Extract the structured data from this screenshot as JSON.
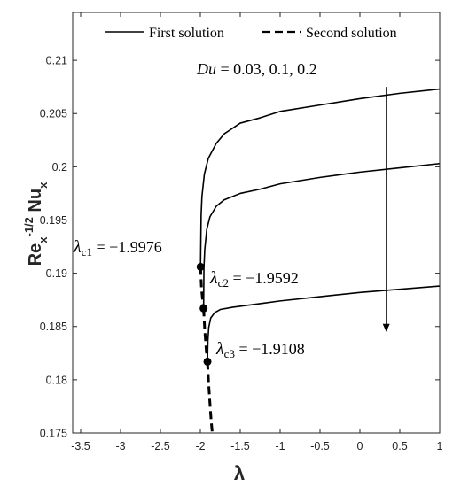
{
  "chart_data": {
    "type": "line",
    "xlabel_main": "λ",
    "ylabel_main": "Re",
    "ylabel_sup": "-1/2",
    "ylabel_main2": " Nu",
    "ylabel_sub1": "x",
    "ylabel_sub2": "x",
    "xlim": [
      -3.6,
      1
    ],
    "ylim": [
      0.175,
      0.2145
    ],
    "xticks": [
      -3.5,
      -3,
      -2.5,
      -2,
      -1.5,
      -1,
      -0.5,
      0,
      0.5,
      1
    ],
    "xtick_labels": [
      "-3.5",
      "-3",
      "-2.5",
      "-2",
      "-1.5",
      "-1",
      "-0.5",
      "0",
      "0.5",
      "1"
    ],
    "yticks": [
      0.175,
      0.18,
      0.185,
      0.19,
      0.195,
      0.2,
      0.205,
      0.21
    ],
    "ytick_labels": [
      "0.175",
      "0.18",
      "0.185",
      "0.19",
      "0.195",
      "0.2",
      "0.205",
      "0.21"
    ],
    "grid": false,
    "legend": {
      "placement": "top",
      "entries": [
        {
          "label": "First solution",
          "style": "solid"
        },
        {
          "label": "Second solution",
          "style": "dashed"
        }
      ]
    },
    "annotation": {
      "label": "Du",
      "text": " = 0.03, 0.1, 0.2"
    },
    "arrow": {
      "x": 0.33,
      "y_from": 0.2075,
      "y_to": 0.1845
    },
    "critical_points": [
      {
        "name": "λ",
        "sub": "c1",
        "text": " = −1.9976",
        "x": -1.9976,
        "y": 0.1906
      },
      {
        "name": "λ",
        "sub": "c2",
        "text": " = −1.9592",
        "x": -1.9592,
        "y": 0.1867
      },
      {
        "name": "λ",
        "sub": "c3",
        "text": " = −1.9108",
        "x": -1.9108,
        "y": 0.1817
      }
    ],
    "series": [
      {
        "style": "solid",
        "x": [
          -1.9976,
          -1.99,
          -1.98,
          -1.95,
          -1.9,
          -1.8,
          -1.7,
          -1.5,
          -1.25,
          -1,
          -0.5,
          0,
          0.5,
          1
        ],
        "y": [
          0.1906,
          0.1955,
          0.1972,
          0.1993,
          0.2008,
          0.2022,
          0.2031,
          0.2041,
          0.2046,
          0.2052,
          0.2058,
          0.2064,
          0.2069,
          0.2073
        ]
      },
      {
        "style": "solid",
        "x": [
          -1.9592,
          -1.955,
          -1.945,
          -1.92,
          -1.88,
          -1.8,
          -1.7,
          -1.5,
          -1.25,
          -1,
          -0.5,
          0,
          0.5,
          1
        ],
        "y": [
          0.1867,
          0.1905,
          0.1922,
          0.1941,
          0.1953,
          0.1963,
          0.1969,
          0.1975,
          0.1979,
          0.1984,
          0.199,
          0.1995,
          0.1999,
          0.2003
        ]
      },
      {
        "style": "solid",
        "x": [
          -1.9108,
          -1.905,
          -1.895,
          -1.87,
          -1.82,
          -1.75,
          -1.6,
          -1.4,
          -1.2,
          -1,
          -0.5,
          0,
          0.5,
          1
        ],
        "y": [
          0.1817,
          0.1837,
          0.1849,
          0.1858,
          0.1863,
          0.1866,
          0.1868,
          0.187,
          0.1872,
          0.1874,
          0.1878,
          0.1882,
          0.1885,
          0.1888
        ]
      },
      {
        "style": "dashed",
        "x": [
          -1.9976,
          -1.985,
          -1.97,
          -1.9592
        ],
        "y": [
          0.1906,
          0.1885,
          0.1874,
          0.1867
        ]
      },
      {
        "style": "dashed",
        "x": [
          -1.9592,
          -1.945,
          -1.925,
          -1.9108
        ],
        "y": [
          0.1867,
          0.1847,
          0.1827,
          0.1817
        ]
      },
      {
        "style": "dashed",
        "x": [
          -1.9108,
          -1.895,
          -1.88,
          -1.865,
          -1.85
        ],
        "y": [
          0.1817,
          0.1795,
          0.1778,
          0.1762,
          0.175
        ]
      }
    ]
  }
}
